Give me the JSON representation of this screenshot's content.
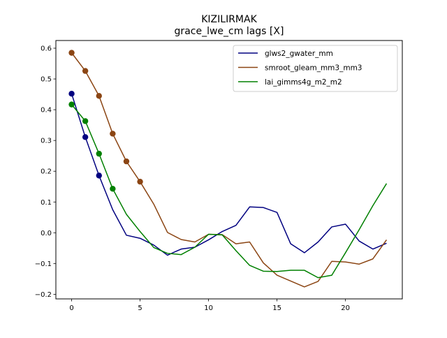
{
  "chart_data": {
    "type": "line",
    "title": "KIZILIRMAK",
    "subtitle": "grace_lwe_cm lags [X]",
    "xlabel": "",
    "ylabel": "",
    "xlim": [
      -1.15,
      24.15
    ],
    "ylim": [
      -0.215,
      0.625
    ],
    "xticks": [
      0,
      5,
      10,
      15,
      20
    ],
    "yticks": [
      -0.2,
      -0.1,
      0.0,
      0.1,
      0.2,
      0.3,
      0.4,
      0.5,
      0.6
    ],
    "ytick_labels": [
      "−0.2",
      "−0.1",
      "0.0",
      "0.1",
      "0.2",
      "0.3",
      "0.4",
      "0.5",
      "0.6"
    ],
    "legend_position": "top-right",
    "grid": false,
    "x": [
      0,
      1,
      2,
      3,
      4,
      5,
      6,
      7,
      8,
      9,
      10,
      11,
      12,
      13,
      14,
      15,
      16,
      17,
      18,
      19,
      20,
      21,
      22,
      23
    ],
    "series": [
      {
        "name": "glws2_gwater_mm",
        "color": "#000080",
        "marker_count": 3,
        "values": [
          0.452,
          0.311,
          0.186,
          0.075,
          -0.008,
          -0.018,
          -0.04,
          -0.073,
          -0.053,
          -0.047,
          -0.023,
          0.004,
          0.024,
          0.084,
          0.082,
          0.066,
          -0.036,
          -0.065,
          -0.03,
          0.019,
          0.028,
          -0.027,
          -0.053,
          -0.034
        ]
      },
      {
        "name": "smroot_gleam_mm3_mm3",
        "color": "#8B4513",
        "marker_count": 6,
        "values": [
          0.585,
          0.526,
          0.445,
          0.322,
          0.232,
          0.166,
          0.093,
          0.001,
          -0.022,
          -0.03,
          -0.005,
          -0.006,
          -0.036,
          -0.03,
          -0.098,
          -0.138,
          -0.157,
          -0.176,
          -0.158,
          -0.093,
          -0.095,
          -0.102,
          -0.085,
          -0.023
        ]
      },
      {
        "name": "lai_gimms4g_m2_m2",
        "color": "#008000",
        "marker_count": 4,
        "values": [
          0.417,
          0.363,
          0.257,
          0.143,
          0.06,
          0.004,
          -0.048,
          -0.067,
          -0.071,
          -0.047,
          -0.005,
          -0.007,
          -0.058,
          -0.106,
          -0.125,
          -0.126,
          -0.122,
          -0.122,
          -0.146,
          -0.138,
          -0.065,
          0.01,
          0.088,
          0.16
        ]
      }
    ]
  }
}
